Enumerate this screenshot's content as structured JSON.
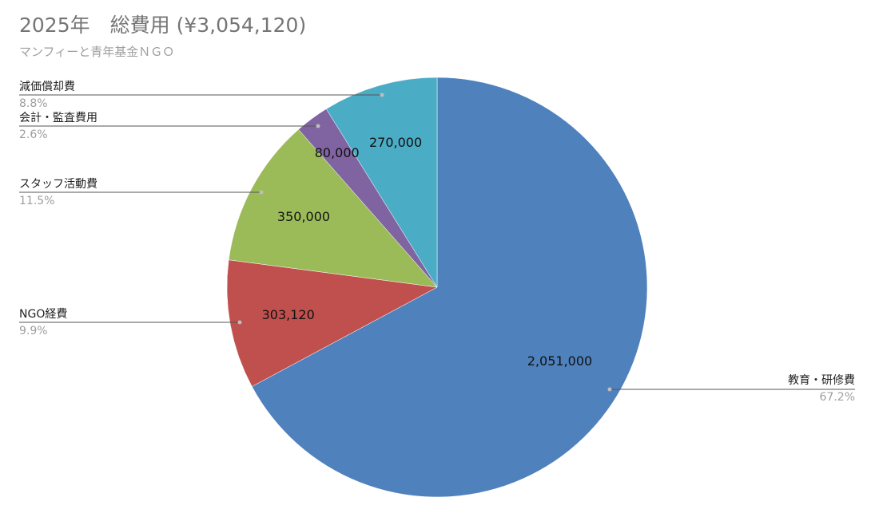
{
  "chart_data": {
    "type": "pie",
    "title": "2025年　総費用 (¥3,054,120)",
    "subtitle": "マンフィーと青年基金ＮＧＯ",
    "start_angle_deg": 0,
    "direction": "clockwise",
    "slices": [
      {
        "name": "教育・研修費",
        "value": 2051000,
        "value_label": "2,051,000",
        "percent_label": "67.2%",
        "color": "#4f81bd"
      },
      {
        "name": "NGO経費",
        "value": 303120,
        "value_label": "303,120",
        "percent_label": "9.9%",
        "color": "#c0504d"
      },
      {
        "name": "スタッフ活動費",
        "value": 350000,
        "value_label": "350,000",
        "percent_label": "11.5%",
        "color": "#9bbb59"
      },
      {
        "name": "会計・監査費用",
        "value": 80000,
        "value_label": "80,000",
        "percent_label": "2.6%",
        "color": "#8064a2"
      },
      {
        "name": "減価償却費",
        "value": 270000,
        "value_label": "270,000",
        "percent_label": "8.8%",
        "color": "#4bacc6"
      }
    ]
  }
}
